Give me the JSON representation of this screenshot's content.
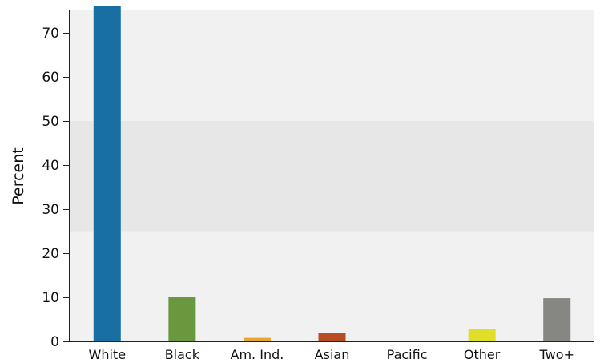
{
  "chart_data": {
    "type": "bar",
    "title": "",
    "xlabel": "",
    "ylabel": "Percent",
    "ylim": [
      0,
      76
    ],
    "yticks": [
      "0",
      "10",
      "20",
      "30",
      "40",
      "50",
      "60",
      "70"
    ],
    "highlight_band": [
      25,
      50
    ],
    "grid": false,
    "categories": [
      "White",
      "Black",
      "Am. Ind.",
      "Asian",
      "Pacific",
      "Other",
      "Two+"
    ],
    "values": [
      76,
      10,
      0.8,
      2,
      0,
      2.8,
      9.8
    ],
    "colors": [
      "#1770a1",
      "#6b973e",
      "#e7a630",
      "#b64f21",
      "#7f7f7f",
      "#dede2b",
      "#868683"
    ]
  }
}
